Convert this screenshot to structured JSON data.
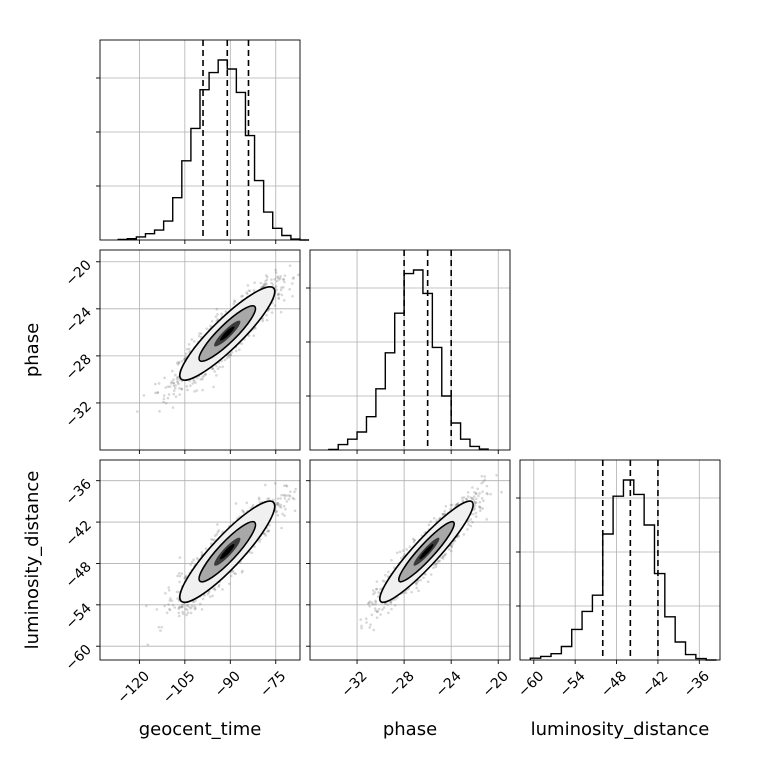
{
  "chart_data": {
    "type": "corner",
    "parameters": [
      {
        "name": "geocent_time",
        "label": "geocent_time",
        "range": [
          -133,
          -67
        ],
        "mean": -91,
        "std": 7.9,
        "ticks": [
          -120,
          -105,
          -90,
          -75
        ],
        "tick_labels": [
          "−120",
          "−105",
          "−90",
          "−75"
        ],
        "quantiles": [
          -99,
          -91,
          -84
        ],
        "hist_bins": {
          "start": -127,
          "width": 3.0,
          "counts": [
            0.003,
            0.007,
            0.017,
            0.035,
            0.055,
            0.105,
            0.235,
            0.44,
            0.62,
            0.835,
            0.93,
            1.0,
            0.95,
            0.82,
            0.58,
            0.33,
            0.155,
            0.065,
            0.025,
            0.005,
            0.0
          ]
        }
      },
      {
        "name": "phase",
        "label": "phase",
        "range": [
          -36,
          -19
        ],
        "mean": -26.1,
        "std": 2.0,
        "ticks": [
          -32,
          -28,
          -24,
          -20
        ],
        "tick_labels": [
          "−32",
          "−28",
          "−24",
          "−20"
        ],
        "quantiles": [
          -28,
          -26,
          -24
        ],
        "hist_bins": {
          "start": -34.4,
          "width": 0.8,
          "counts": [
            0.003,
            0.03,
            0.06,
            0.1,
            0.185,
            0.34,
            0.54,
            0.76,
            0.98,
            1.0,
            0.87,
            0.57,
            0.3,
            0.15,
            0.06,
            0.02,
            0.005
          ]
        }
      },
      {
        "name": "luminosity_distance",
        "label": "luminosity_distance",
        "range": [
          -62,
          -33
        ],
        "mean": -46.3,
        "std": 3.7,
        "ticks": [
          -60,
          -54,
          -48,
          -42,
          -36
        ],
        "tick_labels": [
          "−60",
          "−54",
          "−48",
          "−42",
          "−36"
        ],
        "quantiles": [
          -50,
          -46,
          -42
        ],
        "hist_bins": {
          "start": -60.5,
          "width": 1.5,
          "counts": [
            0.01,
            0.02,
            0.035,
            0.075,
            0.17,
            0.27,
            0.36,
            0.7,
            0.91,
            1.0,
            0.92,
            0.75,
            0.48,
            0.24,
            0.1,
            0.03,
            0.008,
            0.0
          ]
        }
      }
    ],
    "pairs": [
      {
        "x": "geocent_time",
        "y": "phase",
        "correlation": 0.9
      },
      {
        "x": "geocent_time",
        "y": "luminosity_distance",
        "correlation": 0.9
      },
      {
        "x": "phase",
        "y": "luminosity_distance",
        "correlation": 0.93
      }
    ],
    "contour_levels": [
      0.5,
      0.86
    ],
    "grid": true,
    "samples_shown": 1500
  }
}
